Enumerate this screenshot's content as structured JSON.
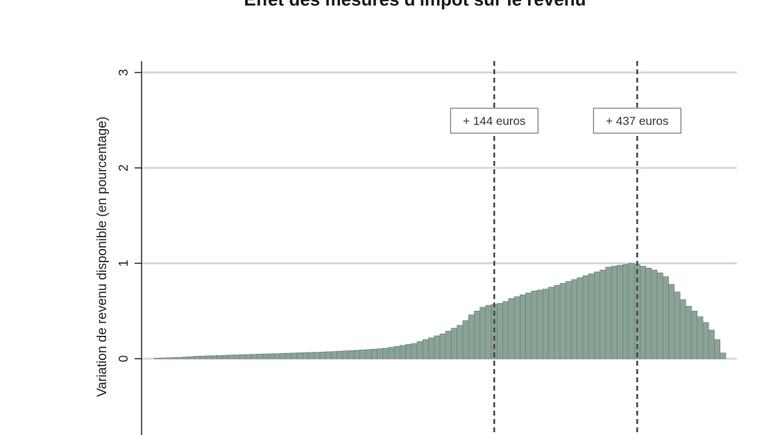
{
  "chart_data": {
    "type": "bar",
    "title": "Effet des mesures d'impôt sur le revenu",
    "xlabel": "",
    "ylabel": "Variation de revenu disponible (en pourcentage)",
    "ylim": [
      -0.8,
      3.1
    ],
    "yticks": [
      0,
      1,
      2,
      3
    ],
    "ytick_labels": [
      "0",
      "1",
      "2",
      "3"
    ],
    "grid": true,
    "bar_color": "#8aa396",
    "bar_edge_color": "#5f7a6c",
    "n_bins": 100,
    "values": [
      0.005,
      0.007,
      0.01,
      0.012,
      0.014,
      0.018,
      0.022,
      0.026,
      0.028,
      0.03,
      0.032,
      0.034,
      0.036,
      0.038,
      0.04,
      0.042,
      0.044,
      0.046,
      0.048,
      0.05,
      0.052,
      0.054,
      0.056,
      0.058,
      0.06,
      0.062,
      0.064,
      0.066,
      0.068,
      0.07,
      0.073,
      0.076,
      0.079,
      0.082,
      0.085,
      0.088,
      0.092,
      0.096,
      0.1,
      0.105,
      0.11,
      0.12,
      0.13,
      0.14,
      0.15,
      0.16,
      0.18,
      0.2,
      0.22,
      0.24,
      0.26,
      0.29,
      0.32,
      0.35,
      0.4,
      0.46,
      0.5,
      0.54,
      0.56,
      0.57,
      0.58,
      0.6,
      0.63,
      0.65,
      0.67,
      0.69,
      0.71,
      0.72,
      0.73,
      0.75,
      0.77,
      0.79,
      0.81,
      0.83,
      0.85,
      0.87,
      0.89,
      0.91,
      0.93,
      0.96,
      0.97,
      0.98,
      0.99,
      1.0,
      0.99,
      0.97,
      0.95,
      0.93,
      0.9,
      0.86,
      0.78,
      0.7,
      0.62,
      0.55,
      0.5,
      0.44,
      0.38,
      0.3,
      0.2,
      0.06
    ],
    "reference_lines": [
      {
        "bin": 59,
        "label": "+ 144 euros"
      },
      {
        "bin": 84,
        "label": "+ 437 euros"
      }
    ]
  }
}
